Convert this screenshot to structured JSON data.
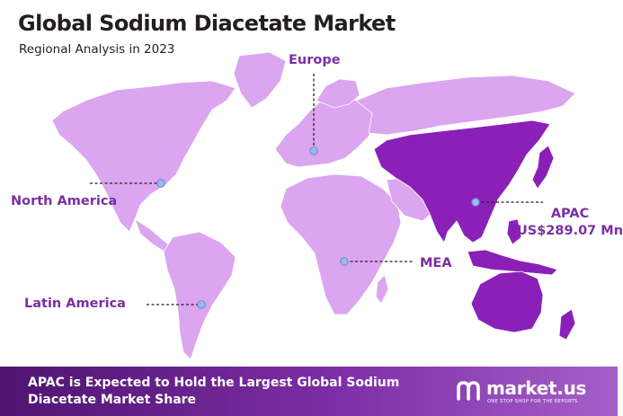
{
  "header": {
    "title": "Global Sodium Diacetate Market",
    "subtitle": "Regional Analysis in 2023"
  },
  "map": {
    "highlighted_region": "APAC",
    "colors": {
      "land": "#dba5ef",
      "highlight": "#8a20b8",
      "label": "#7b2fa3",
      "marker": "#9fb8ec",
      "footer_start": "#4f1470",
      "footer_end": "#a45fc9"
    },
    "regions": {
      "europe": {
        "label": "Europe"
      },
      "north_america": {
        "label": "North America"
      },
      "latin_america": {
        "label": "Latin America"
      },
      "mea": {
        "label": "MEA"
      },
      "apac": {
        "label": "APAC",
        "value": "US$289.07 Mn"
      }
    }
  },
  "footer": {
    "text": "APAC is Expected to Hold the Largest Global Sodium Diacetate Market Share",
    "brand_name": "market.us",
    "brand_tagline": "ONE STOP SHOP FOR THE REPORTS"
  }
}
